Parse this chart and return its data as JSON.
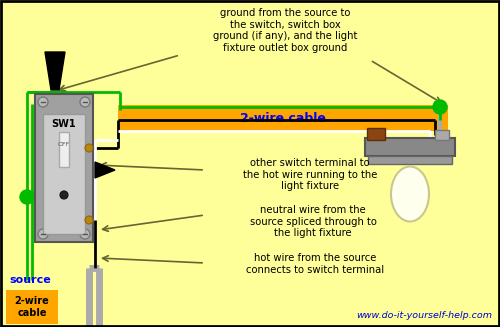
{
  "background_color": "#FFFF99",
  "border_color": "#000000",
  "website_text": "www.do-it-yourself-help.com",
  "website_color": "#0000CC",
  "orange_label": "2-wire cable",
  "orange_label_color": "#0000FF",
  "orange_bg": "#FFA500",
  "source_label": "source",
  "source_color": "#0000FF",
  "cable_label": "2-wire\ncable",
  "sw1_label": "SW1",
  "off_label": "OFF",
  "annotation1": "ground from the source to\nthe switch, switch box\nground (if any), and the light\nfixture outlet box ground",
  "annotation2": "other switch terminal to\nthe hot wire running to the\nlight fixture",
  "annotation3": "neutral wire from the\nsource spliced through to\nthe light fixture",
  "annotation4": "hot wire from the source\nconnects to switch terminal",
  "green_color": "#00BB00",
  "dark_green": "#007700",
  "black_wire": "#000000",
  "white_wire": "#FFFFFF",
  "gray_wire": "#AAAAAA",
  "light_gray": "#BBBBBB",
  "dark_gray": "#555555",
  "brown_color": "#8B4513",
  "brass_color": "#B8860B"
}
